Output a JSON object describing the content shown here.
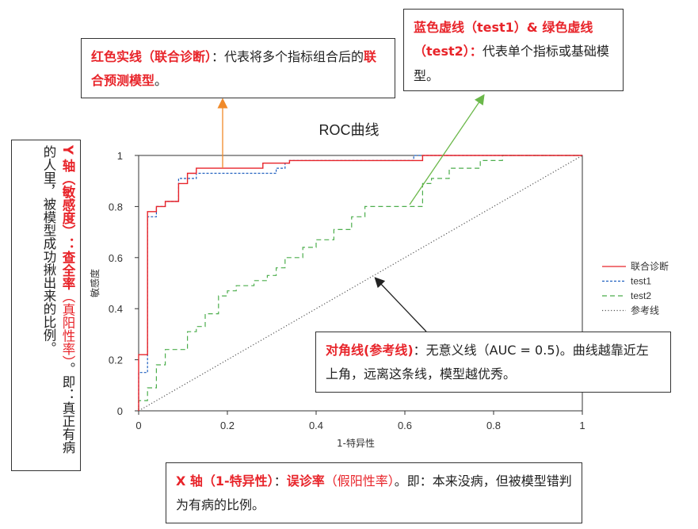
{
  "annotations": {
    "red_line": {
      "bold": "红色实线（联合诊断）",
      "text1": "：代表将多个指标组合后的",
      "bold2": "联合预测模型",
      "text2": "。"
    },
    "dashed": {
      "bold": "蓝色虚线（test1）& 绿色虚线（test2）：",
      "text": "代表单个指标或基础模型。"
    },
    "diagonal": {
      "bold": "对角线(参考线)",
      "text": "：无意义线（AUC = 0.5)。曲线越靠近左上角，远离这条线，模型越优秀。"
    },
    "x_axis": {
      "bold1": "X 轴（1-特异性）",
      "colon": "：",
      "bold2": "误诊率",
      "red": "（假阳性率）",
      "text": "。即：本来没病，但被模型错判为有病的比例。"
    },
    "y_axis": {
      "bold1": "Y 轴（敏感度）：",
      "bold2": "查全率",
      "red": "（真阳性率）",
      "text": "。即：真正有病的人里，被模型成功揪出来的比例。"
    }
  },
  "colors": {
    "combined": "#e8242a",
    "test1": "#1f5fbf",
    "test2": "#4cae4c",
    "reference": "#555555",
    "arrow_orange": "#f08a2a",
    "arrow_green": "#6bb84a",
    "arrow_black": "#222222"
  },
  "chart_data": {
    "type": "line",
    "title": "ROC曲线",
    "xlabel": "1-特异性",
    "ylabel": "敏感度",
    "xlim": [
      0,
      1
    ],
    "ylim": [
      0,
      1
    ],
    "x_ticks": [
      "0",
      "0.2",
      "0.4",
      "0.6",
      "0.8",
      "1"
    ],
    "y_ticks": [
      "0",
      "0.2",
      "0.4",
      "0.6",
      "0.8",
      "1"
    ],
    "legend_position": "right",
    "series": [
      {
        "name": "联合诊断",
        "style": "solid",
        "x": [
          0,
          0,
          0.02,
          0.02,
          0.04,
          0.04,
          0.06,
          0.06,
          0.09,
          0.09,
          0.11,
          0.11,
          0.13,
          0.13,
          0.22,
          0.22,
          0.28,
          0.28,
          0.34,
          0.34,
          0.64,
          0.64,
          1
        ],
        "y": [
          0,
          0.22,
          0.22,
          0.78,
          0.78,
          0.8,
          0.8,
          0.82,
          0.82,
          0.89,
          0.89,
          0.93,
          0.93,
          0.95,
          0.95,
          0.95,
          0.95,
          0.97,
          0.97,
          0.98,
          0.98,
          1,
          1
        ]
      },
      {
        "name": "test1",
        "style": "dashed",
        "x": [
          0,
          0,
          0.02,
          0.02,
          0.04,
          0.04,
          0.06,
          0.06,
          0.09,
          0.09,
          0.11,
          0.11,
          0.13,
          0.13,
          0.19,
          0.19,
          0.22,
          0.22,
          0.31,
          0.31,
          0.33,
          0.33,
          0.34,
          0.34,
          0.62,
          0.62,
          1
        ],
        "y": [
          0,
          0.15,
          0.15,
          0.76,
          0.76,
          0.8,
          0.8,
          0.82,
          0.82,
          0.91,
          0.91,
          0.91,
          0.91,
          0.93,
          0.93,
          0.93,
          0.93,
          0.93,
          0.93,
          0.95,
          0.95,
          0.97,
          0.97,
          0.98,
          0.98,
          1,
          1
        ]
      },
      {
        "name": "test2",
        "style": "dashed",
        "x": [
          0,
          0,
          0.02,
          0.02,
          0.04,
          0.04,
          0.06,
          0.06,
          0.11,
          0.11,
          0.13,
          0.13,
          0.15,
          0.15,
          0.18,
          0.18,
          0.2,
          0.2,
          0.22,
          0.22,
          0.26,
          0.26,
          0.29,
          0.29,
          0.31,
          0.31,
          0.33,
          0.33,
          0.37,
          0.37,
          0.4,
          0.4,
          0.44,
          0.44,
          0.48,
          0.48,
          0.51,
          0.51,
          0.58,
          0.58,
          0.64,
          0.64,
          0.66,
          0.66,
          0.7,
          0.7,
          0.77,
          0.77,
          0.82,
          0.82,
          0.86,
          0.86,
          1
        ],
        "y": [
          0,
          0.04,
          0.04,
          0.09,
          0.09,
          0.18,
          0.18,
          0.24,
          0.24,
          0.31,
          0.31,
          0.33,
          0.33,
          0.38,
          0.38,
          0.45,
          0.45,
          0.47,
          0.47,
          0.49,
          0.49,
          0.51,
          0.51,
          0.53,
          0.53,
          0.56,
          0.56,
          0.6,
          0.6,
          0.64,
          0.64,
          0.67,
          0.67,
          0.71,
          0.71,
          0.76,
          0.76,
          0.8,
          0.8,
          0.8,
          0.8,
          0.89,
          0.89,
          0.91,
          0.91,
          0.95,
          0.95,
          0.98,
          0.98,
          1,
          1,
          1,
          1
        ]
      },
      {
        "name": "参考线",
        "style": "dotted",
        "x": [
          0,
          1
        ],
        "y": [
          0,
          1
        ]
      }
    ]
  }
}
